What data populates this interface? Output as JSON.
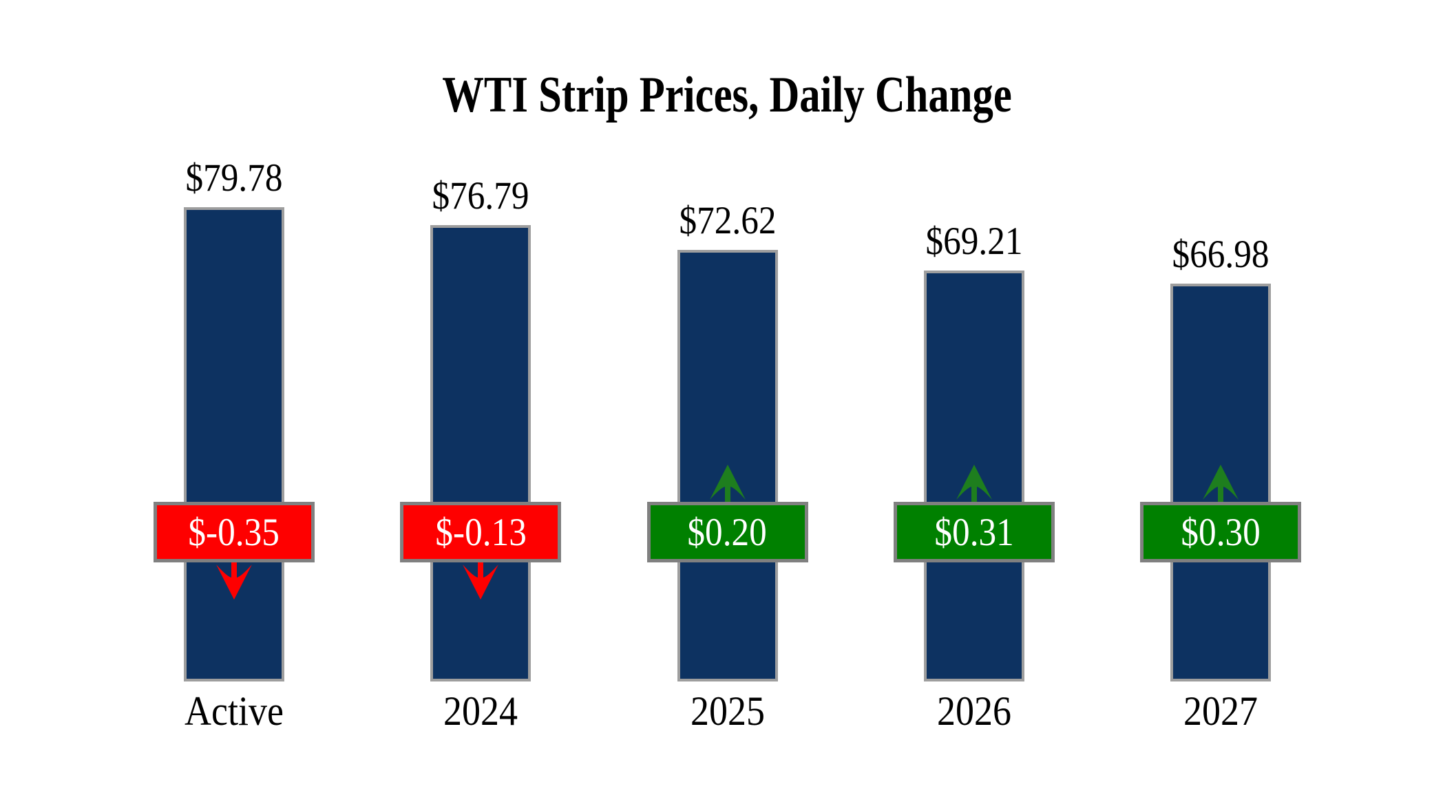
{
  "chart_data": {
    "type": "bar",
    "title": "WTI Strip Prices, Daily Change",
    "categories": [
      "Active",
      "2024",
      "2025",
      "2026",
      "2027"
    ],
    "values": [
      79.78,
      76.79,
      72.62,
      69.21,
      66.98
    ],
    "changes": [
      -0.35,
      -0.13,
      0.2,
      0.31,
      0.3
    ],
    "ylim": [
      0,
      85
    ],
    "grid": false,
    "legend": false,
    "axes_visible": false,
    "bars": [
      {
        "category": "Active",
        "price": 79.78,
        "price_label": "$79.78",
        "change": -0.35,
        "change_label": "$-0.35",
        "direction": "down"
      },
      {
        "category": "2024",
        "price": 76.79,
        "price_label": "$76.79",
        "change": -0.13,
        "change_label": "$-0.13",
        "direction": "down"
      },
      {
        "category": "2025",
        "price": 72.62,
        "price_label": "$72.62",
        "change": 0.2,
        "change_label": "$0.20",
        "direction": "up"
      },
      {
        "category": "2026",
        "price": 69.21,
        "price_label": "$69.21",
        "change": 0.31,
        "change_label": "$0.31",
        "direction": "up"
      },
      {
        "category": "2027",
        "price": 66.98,
        "price_label": "$66.98",
        "change": 0.3,
        "change_label": "$0.30",
        "direction": "up"
      }
    ],
    "colors": {
      "background": "#ffffff",
      "bar_fill": "#0d3261",
      "bar_border": "#9e9e9e",
      "decrease": "#fe0000",
      "increase": "#008000",
      "increase_arrow": "#1e7e1e",
      "badge_border": "#808080",
      "badge_text": "#ffffff",
      "label_text": "#000000"
    }
  }
}
